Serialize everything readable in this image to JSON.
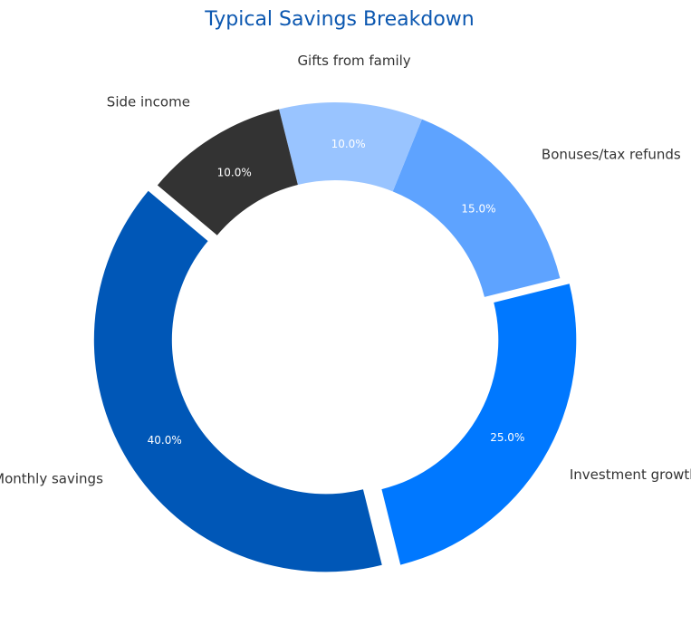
{
  "chart_data": {
    "type": "pie",
    "donut": true,
    "title": "Typical Savings Breakdown",
    "start_angle_deg": 140,
    "direction": "counterclockwise",
    "slices": [
      {
        "label": "Monthly savings",
        "value": 40.0,
        "percent_label": "40.0%",
        "color": "#0057b7",
        "exploded": true
      },
      {
        "label": "Investment growth",
        "value": 25.0,
        "percent_label": "25.0%",
        "color": "#0078ff",
        "exploded": true
      },
      {
        "label": "Bonuses/tax refunds",
        "value": 15.0,
        "percent_label": "15.0%",
        "color": "#5ea3ff",
        "exploded": false
      },
      {
        "label": "Gifts from family",
        "value": 10.0,
        "percent_label": "10.0%",
        "color": "#99c4ff",
        "exploded": false
      },
      {
        "label": "Side income",
        "value": 10.0,
        "percent_label": "10.0%",
        "color": "#333333",
        "exploded": false
      }
    ]
  }
}
